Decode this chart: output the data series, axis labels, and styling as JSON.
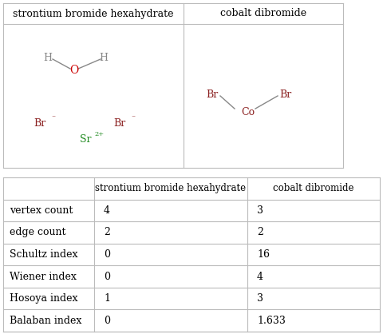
{
  "col_headers": [
    "",
    "strontium bromide hexahydrate",
    "cobalt dibromide"
  ],
  "row_labels": [
    "vertex count",
    "edge count",
    "Schultz index",
    "Wiener index",
    "Hosoya index",
    "Balaban index"
  ],
  "col1_values": [
    "4",
    "2",
    "0",
    "0",
    "1",
    "0"
  ],
  "col2_values": [
    "3",
    "2",
    "16",
    "4",
    "3",
    "1.633"
  ],
  "background_color": "#ffffff",
  "grid_color": "#bbbbbb",
  "text_color": "#000000",
  "br_color": "#8B2020",
  "o_color": "#cc0000",
  "h_color": "#888888",
  "sr_color": "#228B22",
  "co_color": "#8B2020",
  "bond_color": "#888888",
  "font_size_header": 9,
  "font_size_cell": 9,
  "font_size_mol": 9
}
